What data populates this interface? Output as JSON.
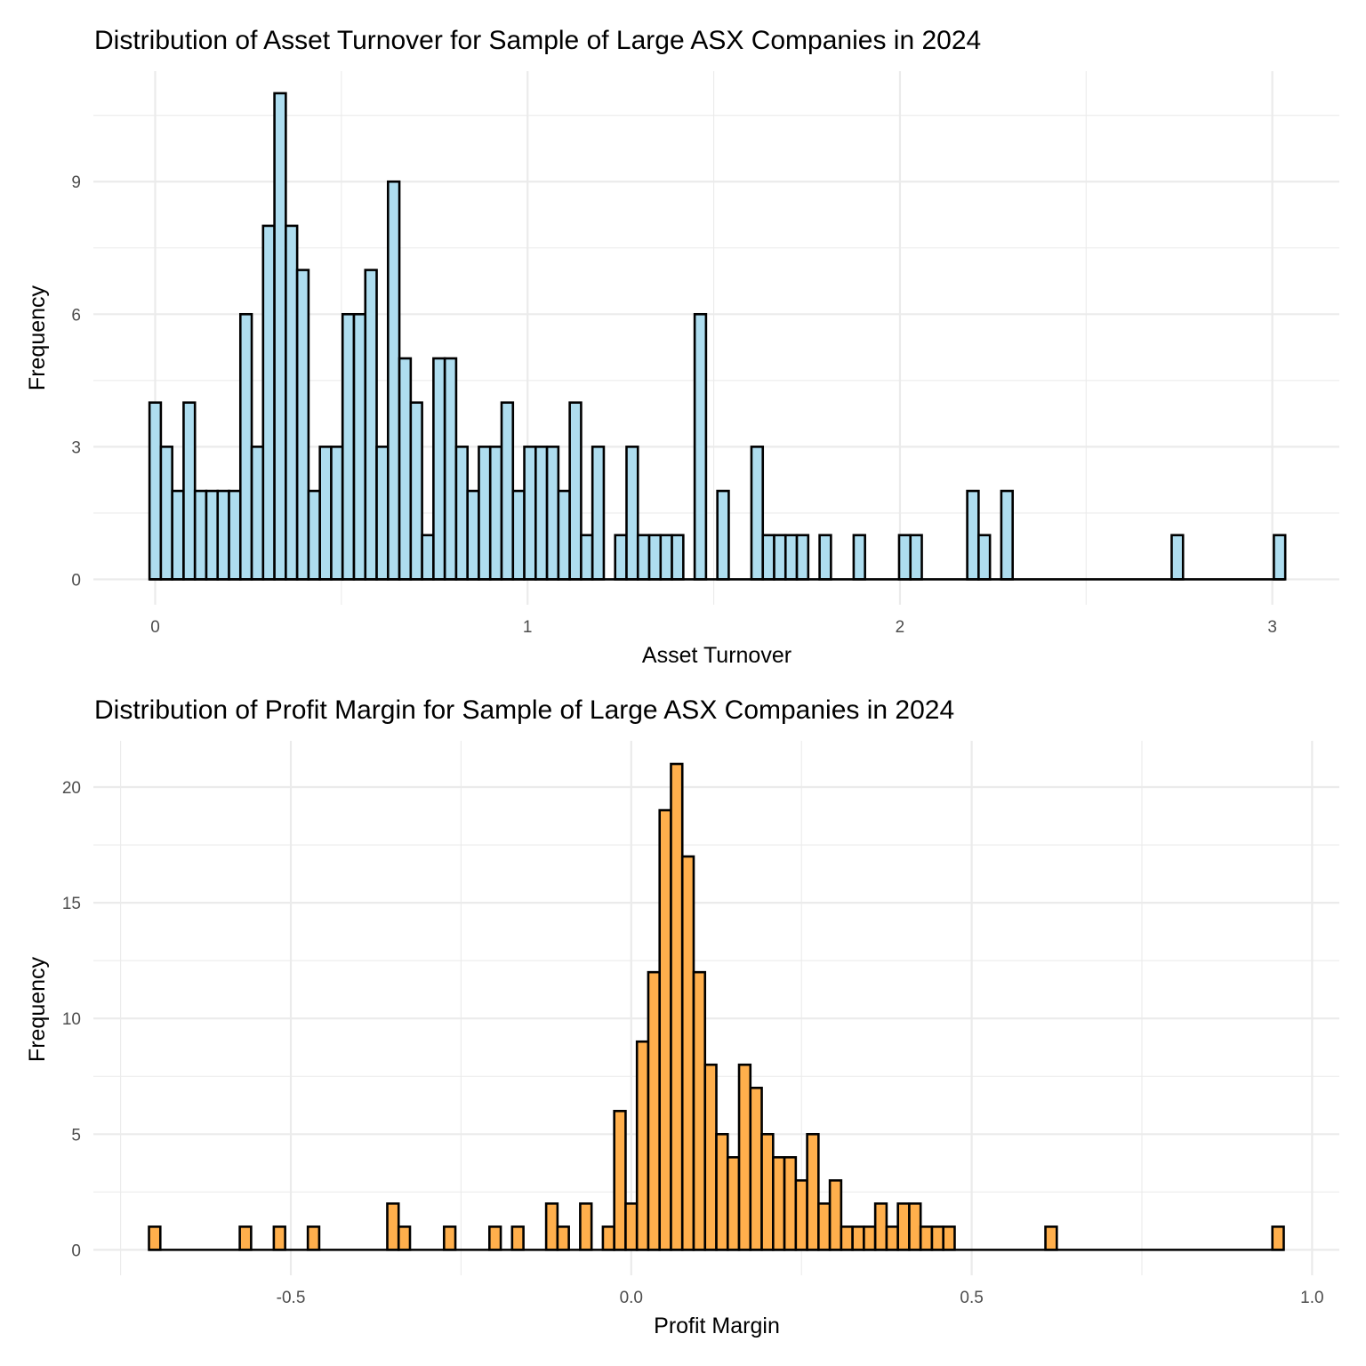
{
  "chart_data": [
    {
      "type": "bar",
      "title": "Distribution of Asset Turnover for Sample of Large ASX Companies in 2024",
      "xlabel": "Asset Turnover",
      "ylabel": "Frequency",
      "fill_color": "#AEDDEF",
      "outline_color": "#000000",
      "bin_start_center": 0.0,
      "bin_width": 0.0305,
      "xlim": [
        -0.166,
        3.18
      ],
      "ylim": [
        0,
        11.5
      ],
      "x_ticks": [
        0,
        1,
        2,
        3
      ],
      "x_tick_labels": [
        "0",
        "1",
        "2",
        "3"
      ],
      "x_minor_ticks": [
        0.5,
        1.5,
        2.5
      ],
      "y_ticks": [
        0,
        3,
        6,
        9
      ],
      "y_tick_labels": [
        "0",
        "3",
        "6",
        "9"
      ],
      "y_minor_ticks": [
        1.5,
        4.5,
        7.5,
        10.5
      ],
      "grid": true,
      "values": [
        4,
        3,
        2,
        4,
        2,
        2,
        2,
        2,
        6,
        3,
        8,
        11,
        8,
        7,
        2,
        3,
        3,
        6,
        6,
        7,
        3,
        9,
        5,
        4,
        1,
        5,
        5,
        3,
        2,
        3,
        3,
        4,
        2,
        3,
        3,
        3,
        2,
        4,
        1,
        3,
        0,
        1,
        3,
        1,
        1,
        1,
        1,
        0,
        6,
        0,
        2,
        0,
        0,
        3,
        1,
        1,
        1,
        1,
        0,
        1,
        0,
        0,
        1,
        0,
        0,
        0,
        1,
        1,
        0,
        0,
        0,
        0,
        2,
        1,
        0,
        2,
        0,
        0,
        0,
        0,
        0,
        0,
        0,
        0,
        0,
        0,
        0,
        0,
        0,
        0,
        1,
        0,
        0,
        0,
        0,
        0,
        0,
        0,
        0,
        1
      ]
    },
    {
      "type": "bar",
      "title": "Distribution of Profit Margin for Sample of Large ASX Companies in 2024",
      "xlabel": "Profit Margin",
      "ylabel": "Frequency",
      "fill_color": "#FFAF4C",
      "outline_color": "#000000",
      "bin_start_center": -0.7,
      "bin_width": 0.016667,
      "xlim": [
        -0.79,
        1.04
      ],
      "ylim": [
        0,
        22
      ],
      "x_ticks": [
        -0.5,
        0.0,
        0.5,
        1.0
      ],
      "x_tick_labels": [
        "-0.5",
        "0.0",
        "0.5",
        "1.0"
      ],
      "x_minor_ticks": [
        -0.75,
        -0.25,
        0.25,
        0.75
      ],
      "y_ticks": [
        0,
        5,
        10,
        15,
        20
      ],
      "y_tick_labels": [
        "0",
        "5",
        "10",
        "15",
        "20"
      ],
      "y_minor_ticks": [
        2.5,
        7.5,
        12.5,
        17.5
      ],
      "grid": true,
      "values": [
        1,
        0,
        0,
        0,
        0,
        0,
        0,
        0,
        1,
        0,
        0,
        1,
        0,
        0,
        1,
        0,
        0,
        0,
        0,
        0,
        0,
        2,
        1,
        0,
        0,
        0,
        1,
        0,
        0,
        0,
        1,
        0,
        1,
        0,
        0,
        2,
        1,
        0,
        2,
        0,
        1,
        6,
        2,
        9,
        12,
        19,
        21,
        17,
        12,
        8,
        5,
        4,
        8,
        7,
        5,
        4,
        4,
        3,
        5,
        2,
        3,
        1,
        1,
        1,
        2,
        1,
        2,
        2,
        1,
        1,
        1,
        0,
        0,
        0,
        0,
        0,
        0,
        0,
        0,
        1,
        0,
        0,
        0,
        0,
        0,
        0,
        0,
        0,
        0,
        0,
        0,
        0,
        0,
        0,
        0,
        0,
        0,
        0,
        0,
        1
      ]
    }
  ]
}
